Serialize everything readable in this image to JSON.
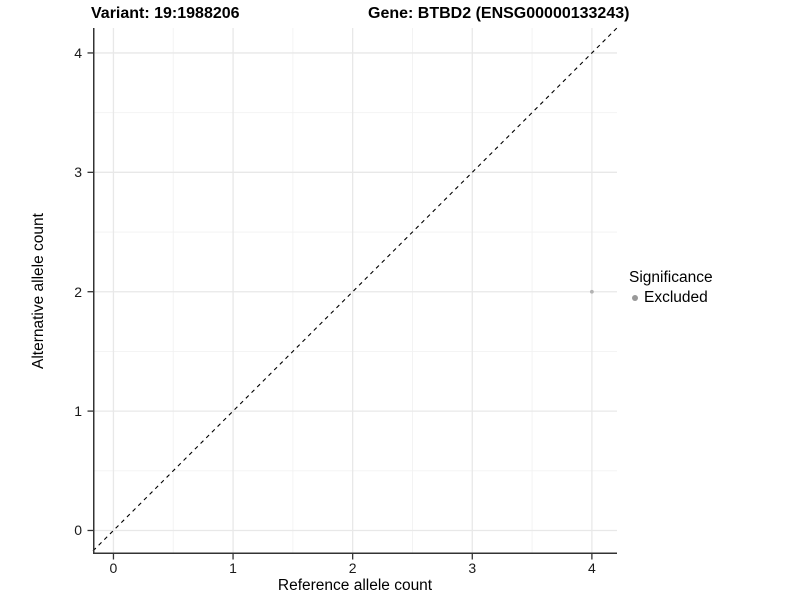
{
  "header": {
    "variant_title": "Variant: 19:1988206",
    "gene_title": "Gene: BTBD2 (ENSG00000133243)"
  },
  "chart_data": {
    "type": "scatter",
    "title_left": "Variant: 19:1988206",
    "title_right": "Gene: BTBD2 (ENSG00000133243)",
    "xlabel": "Reference allele count",
    "ylabel": "Alternative allele count",
    "xlim": [
      -0.171,
      4.21
    ],
    "ylim": [
      -0.197,
      4.209
    ],
    "x_ticks": [
      0,
      1,
      2,
      3,
      4
    ],
    "y_ticks": [
      0,
      1,
      2,
      3,
      4
    ],
    "x_minor_ticks": [
      0.5,
      1.5,
      2.5,
      3.5
    ],
    "y_minor_ticks": [
      0.5,
      1.5,
      2.5,
      3.5
    ],
    "grid": true,
    "reference_line": {
      "equation": "y = x",
      "style": "dashed",
      "color": "#000000"
    },
    "series": [
      {
        "name": "Excluded",
        "color": "#b3b3b3",
        "points": [
          {
            "x": 4,
            "y": 2
          }
        ],
        "point_radius": 1.9
      }
    ],
    "legend": {
      "title": "Significance",
      "position": "right",
      "entries": [
        {
          "label": "Excluded",
          "color": "#999999"
        }
      ]
    },
    "colors": {
      "grid_major": "#e8e8e8",
      "grid_minor": "#f2f2f2",
      "axis_line": "#333333",
      "tick_mark": "#333333",
      "background": "#ffffff"
    }
  }
}
